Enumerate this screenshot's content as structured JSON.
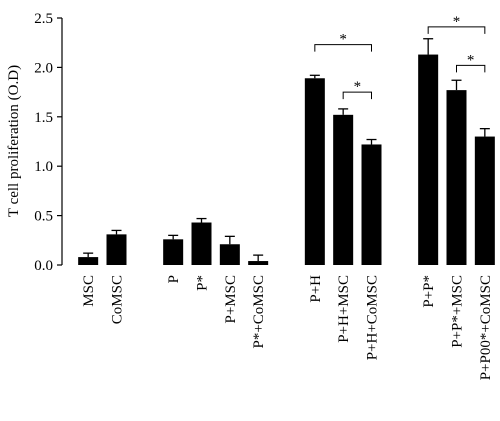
{
  "chart_data": {
    "type": "bar",
    "ylabel": "T cell proliferation (O.D)",
    "categories": [
      "MSC",
      "CoMSC",
      null,
      "P",
      "P*",
      "P+MSC",
      "P*+CoMSC",
      null,
      "P+H",
      "P+H+MSC",
      "P+H+CoMSC",
      null,
      "P+P*",
      "P+P*+MSC",
      "P+P00*+CoMSC"
    ],
    "values": [
      0.08,
      0.31,
      null,
      0.26,
      0.43,
      0.21,
      0.04,
      null,
      1.89,
      1.52,
      1.22,
      null,
      2.13,
      1.77,
      1.3
    ],
    "errors": [
      0.04,
      0.04,
      null,
      0.04,
      0.04,
      0.08,
      0.06,
      null,
      0.03,
      0.06,
      0.05,
      null,
      0.16,
      0.1,
      0.08
    ],
    "color": "#000000",
    "ylim": [
      0,
      2.5
    ],
    "yticks": [
      {
        "value": 0,
        "label": "0.0"
      },
      {
        "value": 0.5,
        "label": "0.5"
      },
      {
        "value": 1,
        "label": "1.0"
      },
      {
        "value": 1.5,
        "label": "1.5"
      },
      {
        "value": 2,
        "label": "2.0"
      },
      {
        "value": 2.5,
        "label": "2.5"
      }
    ],
    "annotations": [
      {
        "text": "*",
        "from": 8,
        "to": 10,
        "y": 2.23
      },
      {
        "text": "*",
        "from": 9,
        "to": 10,
        "y": 1.75
      },
      {
        "text": "*",
        "from": 12,
        "to": 14,
        "y": 2.41
      },
      {
        "text": "*",
        "from": 13,
        "to": 14,
        "y": 2.02
      }
    ]
  }
}
